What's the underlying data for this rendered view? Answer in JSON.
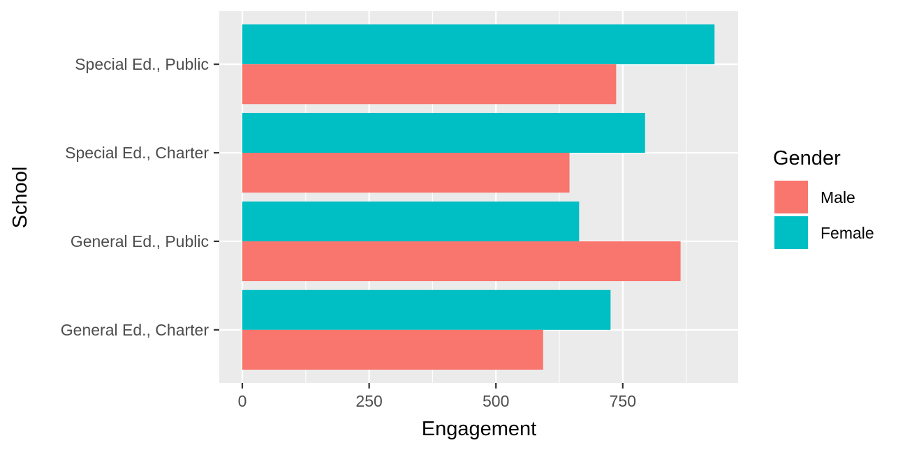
{
  "chart_data": {
    "type": "bar",
    "orientation": "horizontal",
    "xlabel": "Engagement",
    "ylabel": "School",
    "xlim": [
      -90,
      1952
    ],
    "xticks": [
      0,
      250,
      500,
      750
    ],
    "categories": [
      "General Ed., Charter",
      "General Ed., Public",
      "Special Ed., Charter",
      "Special Ed., Public"
    ],
    "series": [
      {
        "name": "Male",
        "color": "#F8766D",
        "values": [
          593,
          864,
          645,
          737
        ]
      },
      {
        "name": "Female",
        "color": "#00BFC4",
        "values": [
          726,
          664,
          794,
          931
        ]
      }
    ],
    "legend": {
      "title": "Gender",
      "position": "right"
    },
    "grid": true,
    "panel_background": "#EBEBEB"
  }
}
